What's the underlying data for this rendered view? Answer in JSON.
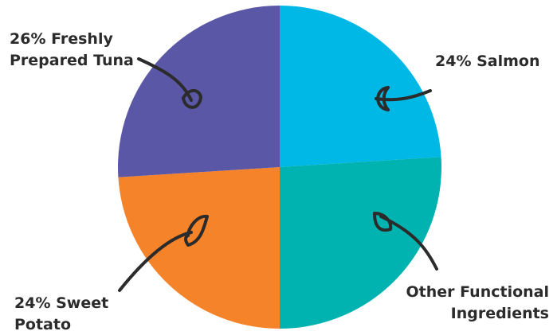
{
  "chart_data": {
    "type": "pie",
    "slices": [
      {
        "label": "24% Salmon",
        "value": 24,
        "color": "#00b8e6"
      },
      {
        "label": "Other Functional\nIngredients",
        "value": 26,
        "color": "#00b3b0"
      },
      {
        "label": "24% Sweet\nPotato",
        "value": 24,
        "color": "#f5832a"
      },
      {
        "label": "26% Freshly\nPrepared Tuna",
        "value": 26,
        "color": "#5b57a7"
      }
    ],
    "start": "12 o'clock",
    "direction": "clockwise",
    "label_style": "handwritten arrows pointing into slices"
  }
}
